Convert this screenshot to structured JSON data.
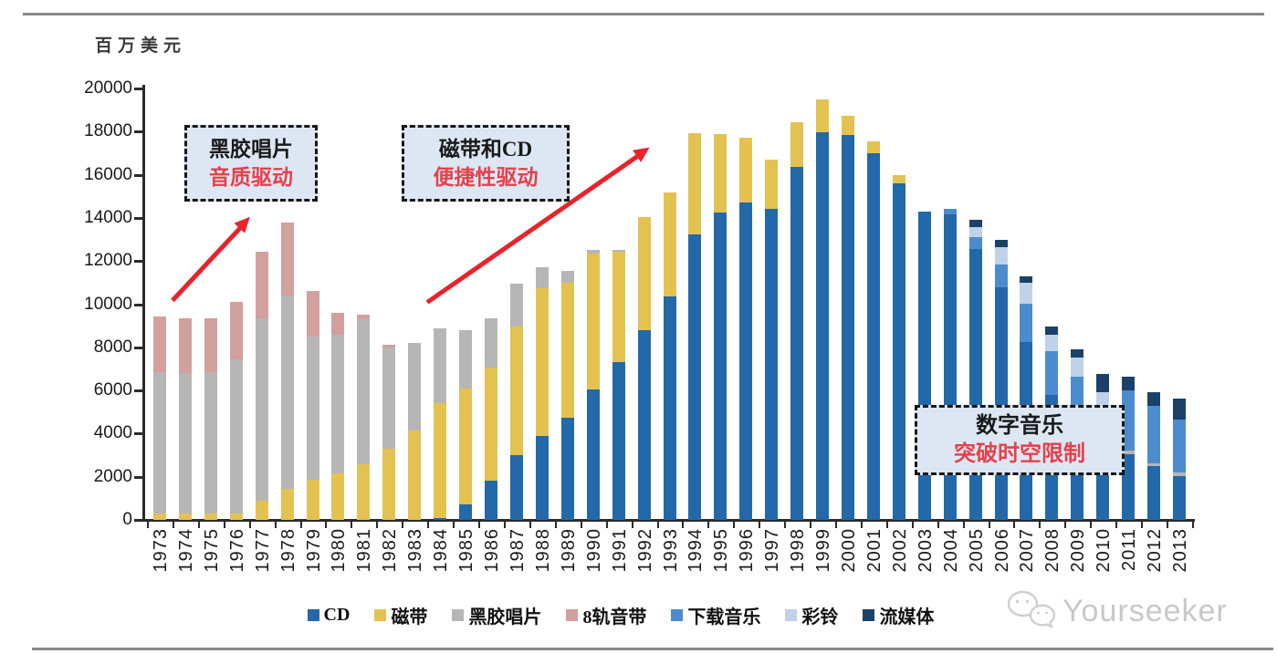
{
  "unit_label": "百万美元",
  "watermark": {
    "text": "Yourseeker"
  },
  "annotations": [
    {
      "line1": "黑胶唱片",
      "line2": "音质驱动"
    },
    {
      "line1": "磁带和CD",
      "line2": "便捷性驱动"
    },
    {
      "line1": "数字音乐",
      "line2": "突破时空限制"
    }
  ],
  "chart_data": {
    "type": "bar",
    "stacked": true,
    "title": "",
    "xlabel": "",
    "ylabel": "百万美元",
    "ylim": [
      0,
      20000
    ],
    "grid": false,
    "legend_position": "bottom",
    "yticks": [
      "0",
      "2000",
      "4000",
      "6000",
      "8000",
      "10000",
      "12000",
      "14000",
      "16000",
      "18000",
      "20000"
    ],
    "categories": [
      "1973",
      "1974",
      "1975",
      "1976",
      "1977",
      "1978",
      "1979",
      "1980",
      "1981",
      "1982",
      "1983",
      "1984",
      "1985",
      "1986",
      "1987",
      "1988",
      "1989",
      "1990",
      "1991",
      "1992",
      "1993",
      "1994",
      "1995",
      "1996",
      "1997",
      "1998",
      "1999",
      "2000",
      "2001",
      "2002",
      "2003",
      "2004",
      "2005",
      "2006",
      "2007",
      "2008",
      "2009",
      "2010",
      "2011",
      "2012",
      "2013"
    ],
    "series": [
      {
        "name": "CD",
        "color": "#2368a9",
        "values": [
          0,
          0,
          0,
          0,
          0,
          0,
          0,
          0,
          0,
          0,
          0,
          100,
          700,
          1800,
          3000,
          3900,
          4750,
          6050,
          7330,
          8800,
          10350,
          13250,
          14270,
          14730,
          14400,
          16350,
          17950,
          17850,
          17000,
          15600,
          14300,
          14170,
          12570,
          10790,
          8250,
          5800,
          4500,
          3300,
          3050,
          2500,
          2050
        ]
      },
      {
        "name": "磁带",
        "color": "#e3c252",
        "values": [
          300,
          300,
          300,
          300,
          900,
          1450,
          1850,
          2150,
          2600,
          3300,
          4150,
          5300,
          5400,
          5250,
          5950,
          6850,
          6250,
          6300,
          5100,
          5250,
          4850,
          4700,
          3630,
          2970,
          2300,
          2100,
          1550,
          900,
          550,
          400,
          0,
          0,
          0,
          0,
          0,
          0,
          0,
          0,
          0,
          0,
          0
        ]
      },
      {
        "name": "黑胶唱片",
        "color": "#b6b6b6",
        "values": [
          6550,
          6500,
          6550,
          7150,
          8450,
          8950,
          6650,
          6450,
          6700,
          4700,
          4050,
          3500,
          2700,
          2300,
          2000,
          950,
          550,
          150,
          70,
          0,
          0,
          0,
          0,
          0,
          0,
          0,
          0,
          0,
          0,
          0,
          0,
          0,
          0,
          0,
          0,
          0,
          0,
          0,
          150,
          120,
          150
        ]
      },
      {
        "name": "8轨音带",
        "color": "#d2a09d",
        "values": [
          2600,
          2550,
          2500,
          2650,
          3100,
          3400,
          2100,
          1000,
          200,
          100,
          0,
          0,
          0,
          0,
          0,
          0,
          0,
          0,
          0,
          0,
          0,
          0,
          0,
          0,
          0,
          0,
          0,
          0,
          0,
          0,
          0,
          0,
          0,
          0,
          0,
          0,
          0,
          0,
          0,
          0,
          0
        ]
      },
      {
        "name": "下载音乐",
        "color": "#4c8cce",
        "values": [
          0,
          0,
          0,
          0,
          0,
          0,
          0,
          0,
          0,
          0,
          0,
          0,
          0,
          0,
          0,
          0,
          0,
          0,
          0,
          0,
          0,
          0,
          0,
          0,
          0,
          0,
          0,
          0,
          0,
          0,
          0,
          240,
          560,
          1050,
          1760,
          2030,
          2130,
          1990,
          2800,
          2680,
          2450
        ]
      },
      {
        "name": "彩铃",
        "color": "#c0d2ea",
        "values": [
          0,
          0,
          0,
          0,
          0,
          0,
          0,
          0,
          0,
          0,
          0,
          0,
          0,
          0,
          0,
          0,
          0,
          0,
          0,
          0,
          0,
          0,
          0,
          0,
          0,
          0,
          0,
          0,
          0,
          0,
          0,
          0,
          430,
          820,
          990,
          770,
          910,
          630,
          0,
          0,
          0
        ]
      },
      {
        "name": "流媒体",
        "color": "#1b4168",
        "values": [
          0,
          0,
          0,
          0,
          0,
          0,
          0,
          0,
          0,
          0,
          0,
          0,
          0,
          0,
          0,
          0,
          0,
          0,
          0,
          0,
          0,
          0,
          0,
          0,
          0,
          0,
          0,
          0,
          0,
          0,
          0,
          0,
          360,
          310,
          280,
          350,
          360,
          850,
          640,
          620,
          980
        ]
      }
    ]
  }
}
